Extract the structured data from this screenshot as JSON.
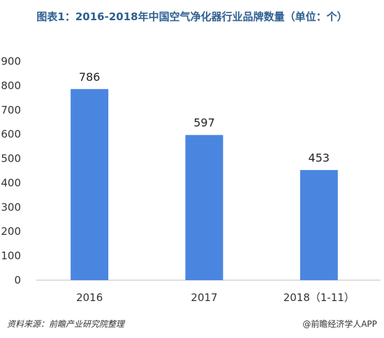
{
  "title": "图表1：2016-2018年中国空气净化器行业品牌数量（单位：个）",
  "source": "资料来源：前瞻产业研究院整理",
  "credit": "@前瞻经济学人APP",
  "colors": {
    "bar": "#4a86e0",
    "title": "#2f5f91",
    "axis": "#bfbfbf"
  },
  "chart_data": {
    "type": "bar",
    "title": "图表1：2016-2018年中国空气净化器行业品牌数量（单位：个）",
    "categories": [
      "2016",
      "2017",
      "2018（1-11）"
    ],
    "values": [
      786,
      597,
      453
    ],
    "ylim": [
      0,
      900
    ],
    "yticks": [
      0,
      100,
      200,
      300,
      400,
      500,
      600,
      700,
      800,
      900
    ],
    "grid": false,
    "legend": "none"
  }
}
